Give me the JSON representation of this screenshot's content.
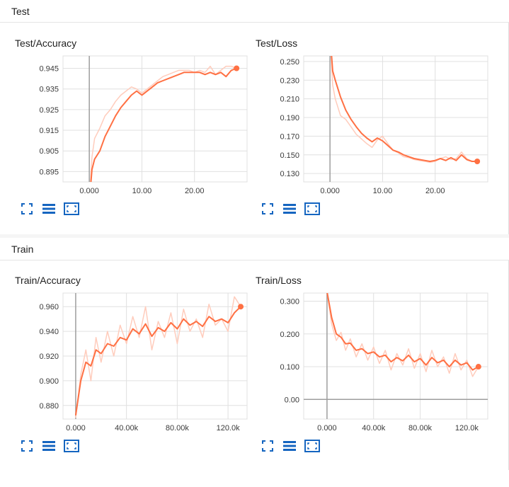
{
  "sections": [
    {
      "title": "Test"
    },
    {
      "title": "Train"
    }
  ],
  "colors": {
    "line": "#ff7043",
    "line_light": "#ffccbc",
    "grid": "#e0e0e0",
    "axis": "#9e9e9e",
    "icon": "#1565c0"
  },
  "tools": [
    "expand-icon",
    "list-icon",
    "fit-domain-icon"
  ],
  "chart_data": [
    {
      "type": "line",
      "title": "Test/Accuracy",
      "xlabel": "",
      "ylabel": "",
      "xlim": [
        -5,
        30
      ],
      "ylim": [
        0.89,
        0.951
      ],
      "x_ticks": [
        0,
        10,
        20
      ],
      "x_tick_labels": [
        "0.000",
        "10.00",
        "20.00"
      ],
      "y_ticks": [
        0.895,
        0.905,
        0.915,
        0.925,
        0.935,
        0.945
      ],
      "y_tick_labels": [
        "0.895",
        "0.905",
        "0.915",
        "0.925",
        "0.935",
        "0.945"
      ],
      "series": [
        {
          "style": "raw",
          "x": [
            0,
            0.5,
            1,
            2,
            3,
            4,
            5,
            6,
            7,
            8,
            9,
            10,
            11,
            12,
            13,
            14,
            15,
            16,
            17,
            18,
            19,
            20,
            21,
            22,
            23,
            24,
            25,
            26,
            27,
            28
          ],
          "y": [
            0.88,
            0.902,
            0.911,
            0.916,
            0.922,
            0.925,
            0.929,
            0.932,
            0.934,
            0.936,
            0.935,
            0.933,
            0.935,
            0.937,
            0.939,
            0.941,
            0.942,
            0.943,
            0.944,
            0.944,
            0.944,
            0.943,
            0.944,
            0.943,
            0.946,
            0.942,
            0.944,
            0.946,
            0.946,
            0.945
          ]
        },
        {
          "style": "smoothed",
          "x": [
            0,
            0.5,
            1,
            2,
            3,
            4,
            5,
            6,
            7,
            8,
            9,
            10,
            11,
            12,
            13,
            14,
            15,
            16,
            17,
            18,
            19,
            20,
            21,
            22,
            23,
            24,
            25,
            26,
            27,
            28
          ],
          "y": [
            0.88,
            0.896,
            0.901,
            0.905,
            0.912,
            0.917,
            0.922,
            0.926,
            0.929,
            0.932,
            0.934,
            0.932,
            0.934,
            0.936,
            0.938,
            0.939,
            0.94,
            0.941,
            0.942,
            0.943,
            0.943,
            0.943,
            0.943,
            0.942,
            0.943,
            0.942,
            0.943,
            0.941,
            0.944,
            0.945
          ]
        }
      ]
    },
    {
      "type": "line",
      "title": "Test/Loss",
      "xlabel": "",
      "ylabel": "",
      "xlim": [
        -5,
        30
      ],
      "ylim": [
        0.121,
        0.256
      ],
      "x_ticks": [
        0,
        10,
        20
      ],
      "x_tick_labels": [
        "0.000",
        "10.00",
        "20.00"
      ],
      "y_ticks": [
        0.13,
        0.15,
        0.17,
        0.19,
        0.21,
        0.23,
        0.25
      ],
      "y_tick_labels": [
        "0.130",
        "0.150",
        "0.170",
        "0.190",
        "0.210",
        "0.230",
        "0.250"
      ],
      "series": [
        {
          "style": "raw",
          "x": [
            0,
            0.5,
            1,
            2,
            3,
            4,
            5,
            6,
            7,
            8,
            9,
            10,
            11,
            12,
            13,
            14,
            15,
            16,
            17,
            18,
            19,
            20,
            21,
            22,
            23,
            24,
            25,
            26,
            27,
            28
          ],
          "y": [
            0.28,
            0.225,
            0.21,
            0.192,
            0.188,
            0.18,
            0.172,
            0.167,
            0.162,
            0.158,
            0.166,
            0.17,
            0.162,
            0.155,
            0.152,
            0.148,
            0.147,
            0.145,
            0.144,
            0.143,
            0.142,
            0.143,
            0.146,
            0.148,
            0.145,
            0.146,
            0.153,
            0.146,
            0.143,
            0.143
          ]
        },
        {
          "style": "smoothed",
          "x": [
            0,
            0.5,
            1,
            2,
            3,
            4,
            5,
            6,
            7,
            8,
            9,
            10,
            11,
            12,
            13,
            14,
            15,
            16,
            17,
            18,
            19,
            20,
            21,
            22,
            23,
            24,
            25,
            26,
            27,
            28
          ],
          "y": [
            0.28,
            0.24,
            0.23,
            0.212,
            0.198,
            0.188,
            0.18,
            0.173,
            0.168,
            0.164,
            0.168,
            0.165,
            0.16,
            0.155,
            0.153,
            0.15,
            0.148,
            0.146,
            0.145,
            0.144,
            0.143,
            0.144,
            0.146,
            0.144,
            0.147,
            0.144,
            0.15,
            0.145,
            0.143,
            0.143
          ]
        }
      ]
    },
    {
      "type": "line",
      "title": "Train/Accuracy",
      "xlabel": "",
      "ylabel": "",
      "xlim": [
        -10000,
        135000
      ],
      "ylim": [
        0.869,
        0.971
      ],
      "x_ticks": [
        0,
        40000,
        80000,
        120000
      ],
      "x_tick_labels": [
        "0.000",
        "40.00k",
        "80.00k",
        "120.0k"
      ],
      "y_ticks": [
        0.88,
        0.9,
        0.92,
        0.94,
        0.96
      ],
      "y_tick_labels": [
        "0.880",
        "0.900",
        "0.920",
        "0.940",
        "0.960"
      ],
      "series": [
        {
          "style": "raw",
          "x": [
            0,
            4000,
            8000,
            12000,
            16000,
            20000,
            25000,
            30000,
            35000,
            40000,
            45000,
            50000,
            55000,
            60000,
            65000,
            70000,
            75000,
            80000,
            85000,
            90000,
            95000,
            100000,
            105000,
            110000,
            115000,
            120000,
            125000,
            130000
          ],
          "y": [
            0.87,
            0.905,
            0.925,
            0.9,
            0.935,
            0.915,
            0.94,
            0.92,
            0.945,
            0.93,
            0.952,
            0.935,
            0.96,
            0.925,
            0.948,
            0.935,
            0.955,
            0.93,
            0.958,
            0.94,
            0.95,
            0.935,
            0.962,
            0.945,
            0.95,
            0.94,
            0.968,
            0.96
          ]
        },
        {
          "style": "smoothed",
          "x": [
            0,
            4000,
            8000,
            12000,
            16000,
            20000,
            25000,
            30000,
            35000,
            40000,
            45000,
            50000,
            55000,
            60000,
            65000,
            70000,
            75000,
            80000,
            85000,
            90000,
            95000,
            100000,
            105000,
            110000,
            115000,
            120000,
            125000,
            130000
          ],
          "y": [
            0.872,
            0.9,
            0.915,
            0.912,
            0.925,
            0.922,
            0.93,
            0.928,
            0.935,
            0.933,
            0.942,
            0.938,
            0.946,
            0.936,
            0.943,
            0.94,
            0.947,
            0.942,
            0.95,
            0.945,
            0.948,
            0.944,
            0.952,
            0.948,
            0.95,
            0.947,
            0.955,
            0.96
          ]
        }
      ]
    },
    {
      "type": "line",
      "title": "Train/Loss",
      "xlabel": "",
      "ylabel": "",
      "xlim": [
        -20000,
        138000
      ],
      "ylim": [
        -0.06,
        0.325
      ],
      "x_ticks": [
        0,
        40000,
        80000,
        120000
      ],
      "x_tick_labels": [
        "0.000",
        "40.00k",
        "80.00k",
        "120.0k"
      ],
      "y_ticks": [
        0.0,
        0.1,
        0.2,
        0.3
      ],
      "y_tick_labels": [
        "0.00",
        "0.100",
        "0.200",
        "0.300"
      ],
      "series": [
        {
          "style": "raw",
          "x": [
            0,
            4000,
            8000,
            12000,
            16000,
            20000,
            25000,
            30000,
            35000,
            40000,
            45000,
            50000,
            55000,
            60000,
            65000,
            70000,
            75000,
            80000,
            85000,
            90000,
            95000,
            100000,
            105000,
            110000,
            115000,
            120000,
            125000,
            130000
          ],
          "y": [
            0.33,
            0.23,
            0.18,
            0.205,
            0.15,
            0.185,
            0.13,
            0.17,
            0.12,
            0.16,
            0.11,
            0.15,
            0.09,
            0.14,
            0.105,
            0.155,
            0.095,
            0.14,
            0.085,
            0.15,
            0.1,
            0.13,
            0.08,
            0.14,
            0.09,
            0.12,
            0.07,
            0.1
          ]
        },
        {
          "style": "smoothed",
          "x": [
            0,
            4000,
            8000,
            12000,
            16000,
            20000,
            25000,
            30000,
            35000,
            40000,
            45000,
            50000,
            55000,
            60000,
            65000,
            70000,
            75000,
            80000,
            85000,
            90000,
            95000,
            100000,
            105000,
            110000,
            115000,
            120000,
            125000,
            130000
          ],
          "y": [
            0.33,
            0.25,
            0.2,
            0.19,
            0.17,
            0.172,
            0.15,
            0.155,
            0.14,
            0.145,
            0.13,
            0.135,
            0.115,
            0.128,
            0.118,
            0.135,
            0.115,
            0.125,
            0.105,
            0.128,
            0.112,
            0.12,
            0.1,
            0.12,
            0.105,
            0.112,
            0.09,
            0.1
          ]
        }
      ]
    }
  ]
}
